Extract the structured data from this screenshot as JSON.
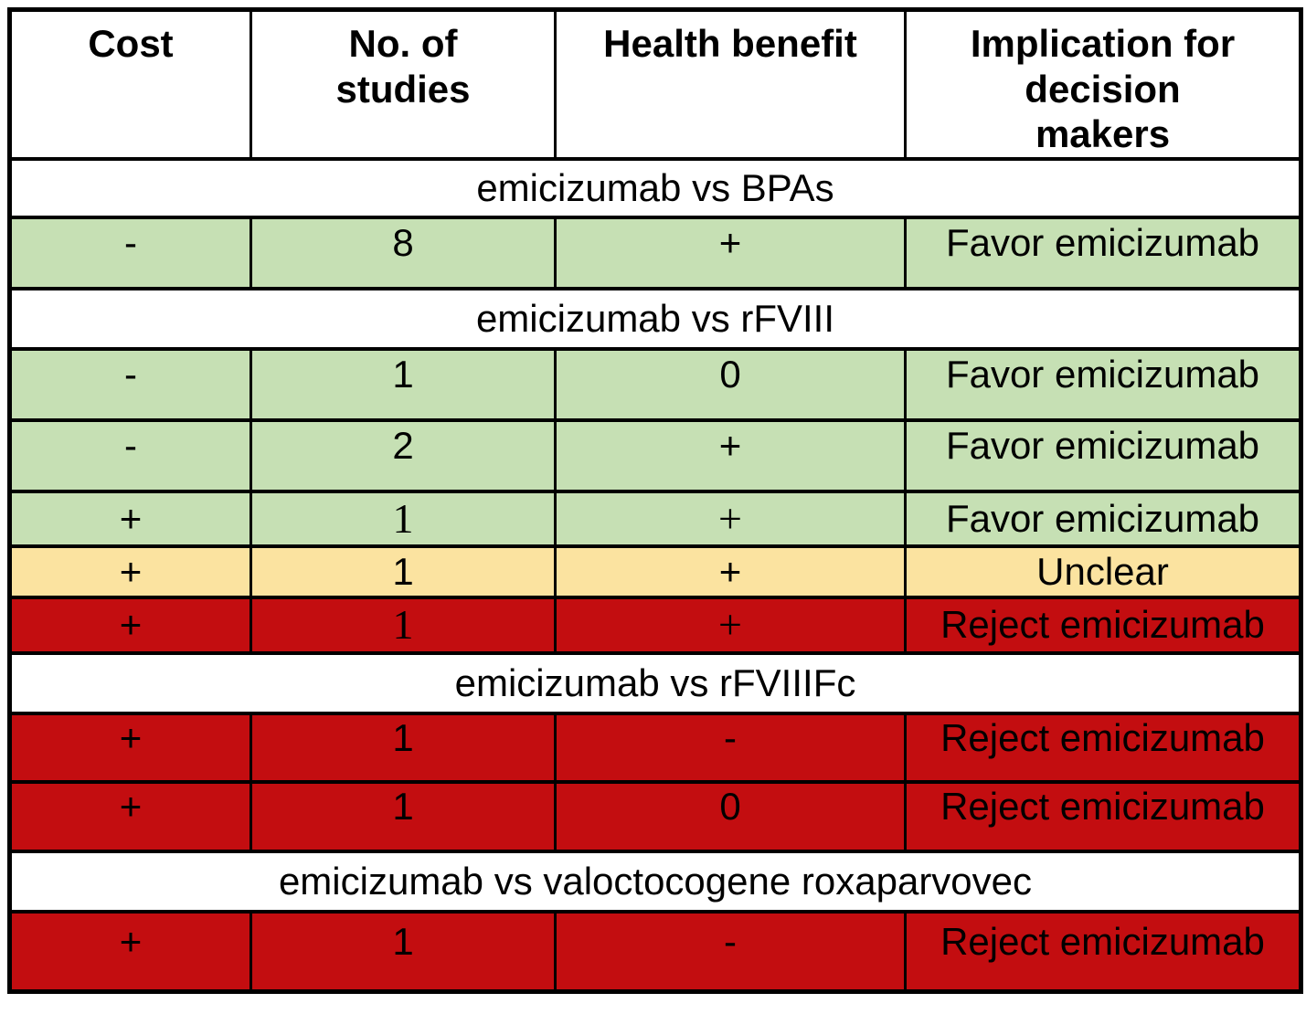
{
  "chart_data": {
    "type": "table",
    "title": "",
    "columns": [
      "Cost",
      "No. of studies",
      "Health benefit",
      "Implication for decision makers"
    ],
    "row_color_meaning": {
      "favor": "green row = Favor emicizumab",
      "unclear": "yellow row = Unclear",
      "reject": "red row = Reject emicizumab"
    },
    "colors": {
      "favor": "#c6e0b4",
      "unclear": "#fbe3a0",
      "reject": "#c30d10",
      "section_bg": "#ffffff",
      "border": "#000000"
    },
    "sections": [
      {
        "title": "emicizumab vs BPAs",
        "rows": [
          {
            "cost": "-",
            "studies": "8",
            "benefit": "+",
            "implication": "Favor emicizumab",
            "status": "favor"
          }
        ]
      },
      {
        "title": "emicizumab vs rFVIII",
        "rows": [
          {
            "cost": "-",
            "studies": "1",
            "benefit": "0",
            "implication": "Favor emicizumab",
            "status": "favor"
          },
          {
            "cost": "-",
            "studies": "2",
            "benefit": "+",
            "implication": "Favor emicizumab",
            "status": "favor"
          },
          {
            "cost": "+",
            "studies": "1",
            "benefit": "+",
            "implication": "Favor emicizumab",
            "status": "favor"
          },
          {
            "cost": "+",
            "studies": "1",
            "benefit": "+",
            "implication": "Unclear",
            "status": "unclear"
          },
          {
            "cost": "+",
            "studies": "1",
            "benefit": "+",
            "implication": "Reject emicizumab",
            "status": "reject"
          }
        ]
      },
      {
        "title": "emicizumab vs rFVIIIFc",
        "rows": [
          {
            "cost": "+",
            "studies": "1",
            "benefit": "-",
            "implication": "Reject emicizumab",
            "status": "reject"
          },
          {
            "cost": "+",
            "studies": "1",
            "benefit": "0",
            "implication": "Reject emicizumab",
            "status": "reject"
          }
        ]
      },
      {
        "title": "emicizumab vs valoctocogene roxaparvovec",
        "rows": [
          {
            "cost": "+",
            "studies": "1",
            "benefit": "-",
            "implication": "Reject emicizumab",
            "status": "reject"
          }
        ]
      }
    ]
  }
}
